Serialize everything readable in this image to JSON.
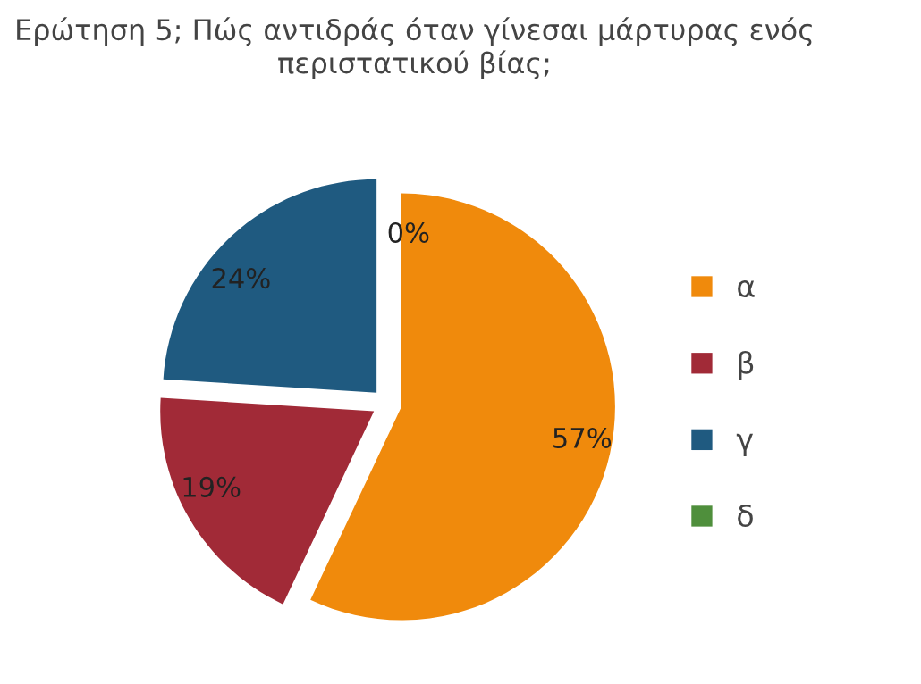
{
  "chart_data": {
    "type": "pie",
    "title": "Ερώτηση 5; Πώς αντιδράς όταν γίνεσαι μάρτυρας ενός περιστατικού βίας;",
    "categories": [
      "α",
      "β",
      "γ",
      "δ"
    ],
    "values": [
      57,
      19,
      24,
      0
    ],
    "colors": [
      "#f08a0c",
      "#a12a37",
      "#1f5a80",
      "#4f8f3c"
    ],
    "value_labels": [
      "57%",
      "19%",
      "24%",
      "0%"
    ],
    "legend": "right"
  }
}
